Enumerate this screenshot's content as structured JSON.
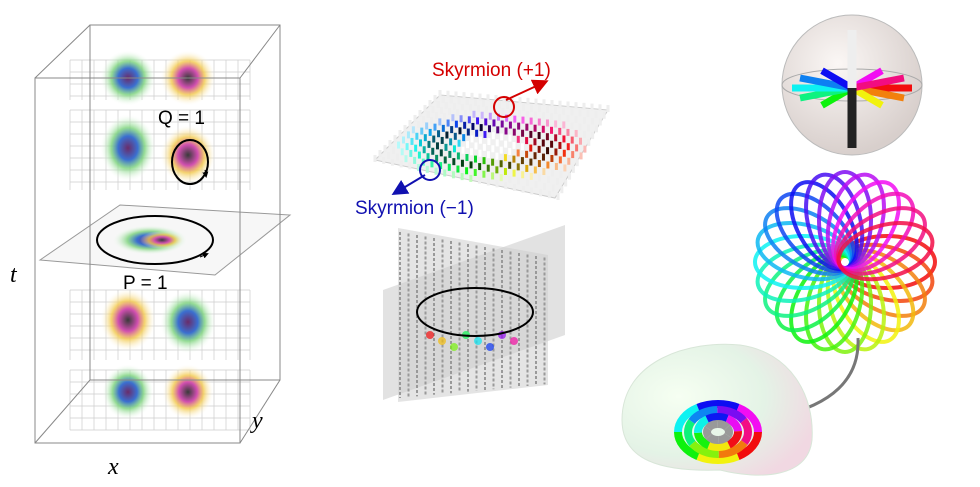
{
  "left_panel": {
    "axis_t": "t",
    "axis_x": "x",
    "axis_y": "y",
    "loop_q": "Q = 1",
    "loop_p": "P = 1"
  },
  "middle_panel": {
    "skyrmion_plus": "Skyrmion (+1)",
    "skyrmion_minus": "Skyrmion (−1)"
  }
}
